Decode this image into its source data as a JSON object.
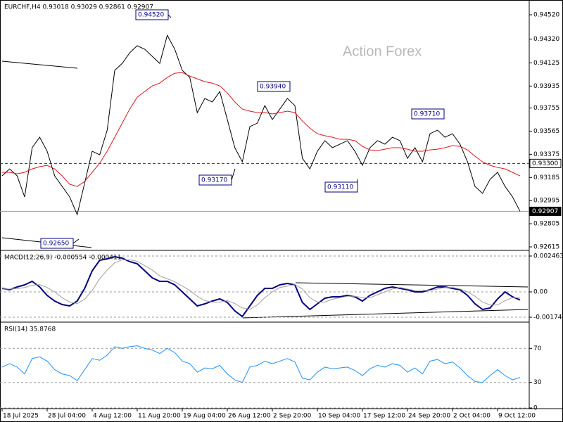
{
  "chart_data": [
    {
      "type": "line",
      "title": "EURCHF,H4  0.93018 0.93029 0.92861 0.92907",
      "watermark": "Action Forex",
      "ylim": [
        0.92592,
        0.94624
      ],
      "yticks": [
        {
          "value": 0.9452,
          "label": "0.94520"
        },
        {
          "value": 0.9432,
          "label": "0.94320"
        },
        {
          "value": 0.94125,
          "label": "0.94125"
        },
        {
          "value": 0.93935,
          "label": "0.93935"
        },
        {
          "value": 0.93755,
          "label": "0.93755"
        },
        {
          "value": 0.93565,
          "label": "0.93565"
        },
        {
          "value": 0.93375,
          "label": "0.93375"
        },
        {
          "value": 0.93185,
          "label": "0.93185"
        },
        {
          "value": 0.92995,
          "label": "0.92995"
        },
        {
          "value": 0.92805,
          "label": "0.92805"
        },
        {
          "value": 0.92615,
          "label": "0.92615"
        }
      ],
      "levels": [
        {
          "value": 0.933,
          "label": "0.93300",
          "style": "dashed"
        },
        {
          "value": 0.92907,
          "label": "0.92907",
          "style": "solid"
        }
      ],
      "annotations": [
        "0.94520",
        "0.93940",
        "0.93710",
        "0.93170",
        "0.93110",
        "0.92650"
      ],
      "series": [
        {
          "color": "#000000",
          "values": [
            0.93198,
            0.93255,
            0.93198,
            0.93025,
            0.93429,
            0.93515,
            0.934,
            0.93198,
            0.93111,
            0.93025,
            0.9288,
            0.9314,
            0.934,
            0.93371,
            0.93573,
            0.94064,
            0.94121,
            0.94208,
            0.94266,
            0.94237,
            0.94179,
            0.94121,
            0.94352,
            0.94237,
            0.94064,
            0.94006,
            0.93717,
            0.93833,
            0.93804,
            0.9389,
            0.9366,
            0.93429,
            0.93313,
            0.93602,
            0.93631,
            0.93775,
            0.9366,
            0.93746,
            0.93833,
            0.93775,
            0.93342,
            0.93255,
            0.934,
            0.93487,
            0.93429,
            0.93458,
            0.93487,
            0.934,
            0.93285,
            0.93429,
            0.93487,
            0.93458,
            0.93515,
            0.93487,
            0.93342,
            0.93429,
            0.93313,
            0.93544,
            0.93573,
            0.93515,
            0.93544,
            0.93458,
            0.93313,
            0.93111,
            0.93054,
            0.93169,
            0.93227,
            0.93111,
            0.93025,
            0.92907
          ]
        },
        {
          "color": "#e0141e",
          "values": [
            0.93227,
            0.93227,
            0.93215,
            0.93227,
            0.93255,
            0.93273,
            0.93284,
            0.93255,
            0.93198,
            0.93129,
            0.93111,
            0.93152,
            0.93227,
            0.93302,
            0.934,
            0.93515,
            0.93631,
            0.93746,
            0.93844,
            0.9389,
            0.93936,
            0.93959,
            0.94006,
            0.9404,
            0.94046,
            0.94017,
            0.93994,
            0.93971,
            0.93959,
            0.93936,
            0.93879,
            0.93804,
            0.93746,
            0.93729,
            0.93717,
            0.93717,
            0.93706,
            0.93717,
            0.93729,
            0.93717,
            0.93648,
            0.9359,
            0.93544,
            0.93527,
            0.93515,
            0.93498,
            0.93498,
            0.93487,
            0.9344,
            0.93411,
            0.93405,
            0.93417,
            0.93429,
            0.93429,
            0.93417,
            0.934,
            0.934,
            0.93411,
            0.93417,
            0.93429,
            0.93446,
            0.9344,
            0.93411,
            0.93359,
            0.93313,
            0.93284,
            0.93267,
            0.93255,
            0.93227,
            0.93198
          ]
        }
      ]
    },
    {
      "type": "line",
      "title": "MACD(12,26,9) -0.000554 -0.000411",
      "ylim": [
        -0.001932,
        0.002801
      ],
      "yticks": [
        0.002463,
        {
          "value": 0,
          "label": "0.00"
        },
        -0.00174
      ],
      "series": [
        {
          "color": "#00007f",
          "values": [
            0.000241,
            0.000145,
            0.000338,
            0.000483,
            0.000724,
            0.000338,
            -0.000241,
            -0.000628,
            -0.000869,
            -0.000966,
            -0.000628,
            0.000241,
            0.001449,
            0.002173,
            0.00227,
            0.002415,
            0.002318,
            0.002077,
            0.001932,
            0.001449,
            0.000966,
            0.000724,
            0.000724,
            0.000483,
            0,
            -0.000483,
            -0.000966,
            -0.000821,
            -0.000628,
            -0.000483,
            -0.000724,
            -0.001304,
            -0.00169,
            -0.000966,
            -0.000241,
            0.000241,
            0.000241,
            0.000483,
            0.00058,
            0.000483,
            -0.000724,
            -0.001207,
            -0.000821,
            -0.000435,
            -0.000338,
            -0.000338,
            -0.000241,
            -0.000338,
            -0.000628,
            -0.000241,
            0,
            0.000241,
            0.000338,
            0.000241,
            0.000145,
            0,
            0,
            0.000145,
            0.000338,
            0.000338,
            0.000241,
            0.000145,
            -0.000241,
            -0.000821,
            -0.001207,
            -0.001111,
            -0.000483,
            0,
            -0.000338,
            -0.000554
          ]
        },
        {
          "color": "#a0a0a0",
          "values": [
            0.0002,
            0.0002,
            0.00022,
            0.0003,
            0.00045,
            0.0005,
            0.0003,
            0,
            -0.0004,
            -0.0007,
            -0.0008,
            -0.0005,
            0.0001,
            0.0009,
            0.0015,
            0.002,
            0.0022,
            0.0022,
            0.0021,
            0.0018,
            0.0015,
            0.0011,
            0.0009,
            0.0007,
            0.0004,
            0.0001,
            -0.0003,
            -0.0006,
            -0.0007,
            -0.0007,
            -0.0006,
            -0.0008,
            -0.0011,
            -0.0012,
            -0.0009,
            -0.0004,
            0,
            0.0003,
            0.0004,
            0.0005,
            0.0002,
            -0.0004,
            -0.0007,
            -0.0007,
            -0.0005,
            -0.0004,
            -0.0003,
            -0.0003,
            -0.0004,
            -0.0004,
            -0.0002,
            0,
            0.0002,
            0.0003,
            0.0002,
            0.0001,
            0.0001,
            0.0001,
            0.0002,
            0.0003,
            0.0003,
            0.0002,
            0,
            -0.0003,
            -0.0007,
            -0.0009,
            -0.0009,
            -0.0006,
            -0.0004,
            -0.000411
          ]
        }
      ]
    },
    {
      "type": "line",
      "title": "RSI(14) 35.8768",
      "ylim": [
        0,
        100
      ],
      "yticks": [
        0,
        30,
        70
      ],
      "categories": [
        "18 Jul 2025",
        null,
        null,
        null,
        null,
        null,
        "28 Jul 04:00",
        null,
        null,
        null,
        null,
        null,
        "4 Aug 12:00",
        null,
        null,
        null,
        null,
        null,
        "11 Aug 20:00",
        null,
        null,
        null,
        null,
        null,
        "19 Aug 04:00",
        null,
        null,
        null,
        null,
        null,
        "26 Aug 12:00",
        null,
        null,
        null,
        null,
        null,
        "2 Sep 20:00",
        null,
        null,
        null,
        null,
        null,
        "10 Sep 04:00",
        null,
        null,
        null,
        null,
        null,
        "17 Sep 12:00",
        null,
        null,
        null,
        null,
        null,
        "24 Sep 20:00",
        null,
        null,
        null,
        null,
        null,
        "2 Oct 04:00",
        null,
        null,
        null,
        null,
        null,
        "9 Oct 12:00",
        null,
        null,
        null
      ],
      "series": [
        {
          "color": "#1e90ff",
          "values": [
            48,
            52,
            48,
            40,
            58,
            60,
            55,
            45,
            40,
            38,
            32,
            45,
            58,
            56,
            62,
            72,
            70,
            72,
            73,
            70,
            68,
            64,
            70,
            65,
            55,
            52,
            42,
            47,
            46,
            50,
            40,
            33,
            30,
            48,
            50,
            55,
            52,
            55,
            58,
            54,
            35,
            33,
            42,
            48,
            46,
            47,
            48,
            44,
            38,
            46,
            50,
            48,
            52,
            50,
            42,
            47,
            40,
            55,
            57,
            52,
            54,
            47,
            38,
            31,
            30,
            38,
            45,
            38,
            33,
            35.8768
          ]
        }
      ]
    }
  ]
}
